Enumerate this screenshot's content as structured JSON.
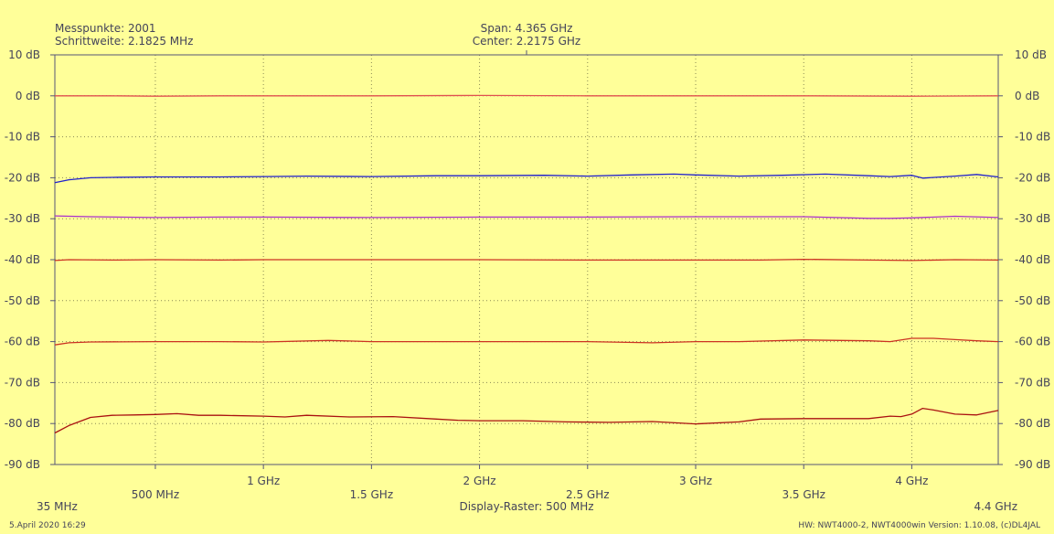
{
  "header": {
    "points_label": "Messpunkte: 2001",
    "step_label": "Schrittweite: 2.1825 MHz",
    "span_label": "Span: 4.365 GHz",
    "center_label": "Center: 2.2175 GHz"
  },
  "footer": {
    "start_label": "35 MHz",
    "stop_label": "4.4 GHz",
    "raster_label": "Display-Raster: 500 MHz",
    "date_label": "5.April 2020 16:29",
    "hw_label": "HW: NWT4000-2, NWT4000win Version: 1.10.08, (c)DL4JAL"
  },
  "colors": {
    "background": "#ffff99",
    "grid": "#8a8a55",
    "frame": "#555577",
    "text": "#44445a"
  },
  "chart_data": {
    "type": "line",
    "xunit": "MHz",
    "yunit": "dB",
    "xlim": [
      35,
      4400
    ],
    "ylim": [
      -90,
      10
    ],
    "x_ticks": [
      500,
      1000,
      1500,
      2000,
      2500,
      3000,
      3500,
      4000
    ],
    "x_tick_labels": [
      "500 MHz",
      "1 GHz",
      "1.5 GHz",
      "2 GHz",
      "2.5 GHz",
      "3 GHz",
      "3.5 GHz",
      "4 GHz"
    ],
    "y_ticks": [
      10,
      0,
      -10,
      -20,
      -30,
      -40,
      -50,
      -60,
      -70,
      -80,
      -90
    ],
    "y_tick_labels": [
      "10 dB",
      "0 dB",
      "-10 dB",
      "-20 dB",
      "-30 dB",
      "-40 dB",
      "-50 dB",
      "-60 dB",
      "-70 dB",
      "-80 dB",
      "-90 dB"
    ],
    "grid": true,
    "series": [
      {
        "color": "#e05050",
        "x": [
          35,
          300,
          500,
          800,
          1000,
          1500,
          2000,
          2500,
          3000,
          3500,
          4000,
          4400
        ],
        "y": [
          0.0,
          0.0,
          -0.1,
          0.0,
          0.0,
          0.0,
          0.1,
          0.0,
          0.0,
          0.0,
          -0.1,
          0.0
        ]
      },
      {
        "color": "#2020cc",
        "x": [
          35,
          100,
          200,
          300,
          500,
          800,
          1000,
          1200,
          1500,
          1800,
          2000,
          2300,
          2500,
          2700,
          2900,
          3000,
          3200,
          3400,
          3600,
          3800,
          3900,
          4000,
          4050,
          4200,
          4300,
          4400
        ],
        "y": [
          -21.2,
          -20.5,
          -20.0,
          -19.9,
          -19.8,
          -19.8,
          -19.7,
          -19.6,
          -19.7,
          -19.5,
          -19.5,
          -19.4,
          -19.6,
          -19.3,
          -19.1,
          -19.3,
          -19.6,
          -19.4,
          -19.1,
          -19.5,
          -19.7,
          -19.4,
          -20.1,
          -19.6,
          -19.2,
          -19.8
        ]
      },
      {
        "color": "#aa30cc",
        "x": [
          35,
          200,
          500,
          800,
          1000,
          1500,
          2000,
          2500,
          3000,
          3500,
          3800,
          3900,
          4000,
          4200,
          4400
        ],
        "y": [
          -29.3,
          -29.5,
          -29.7,
          -29.6,
          -29.6,
          -29.7,
          -29.6,
          -29.6,
          -29.5,
          -29.5,
          -29.9,
          -29.9,
          -29.8,
          -29.4,
          -29.7
        ]
      },
      {
        "color": "#cc3322",
        "x": [
          35,
          100,
          300,
          500,
          800,
          1000,
          1500,
          2000,
          2500,
          3000,
          3300,
          3500,
          3800,
          4000,
          4200,
          4400
        ],
        "y": [
          -40.2,
          -40.0,
          -40.1,
          -40.0,
          -40.1,
          -40.0,
          -40.0,
          -40.0,
          -40.1,
          -40.1,
          -40.1,
          -39.9,
          -40.1,
          -40.2,
          -40.0,
          -40.1
        ]
      },
      {
        "color": "#cc3322",
        "x": [
          35,
          100,
          200,
          500,
          800,
          1000,
          1300,
          1500,
          2000,
          2500,
          2800,
          3000,
          3200,
          3500,
          3800,
          3900,
          4000,
          4100,
          4200,
          4300,
          4400
        ],
        "y": [
          -60.8,
          -60.3,
          -60.1,
          -60.0,
          -60.0,
          -60.1,
          -59.7,
          -60.0,
          -60.0,
          -60.0,
          -60.3,
          -60.0,
          -60.0,
          -59.6,
          -59.8,
          -60.0,
          -59.2,
          -59.2,
          -59.5,
          -59.8,
          -60.0
        ]
      },
      {
        "color": "#aa1111",
        "x": [
          35,
          100,
          200,
          300,
          400,
          500,
          600,
          700,
          800,
          1000,
          1100,
          1200,
          1400,
          1600,
          1800,
          1900,
          2000,
          2200,
          2400,
          2600,
          2800,
          3000,
          3200,
          3300,
          3500,
          3700,
          3800,
          3900,
          3950,
          4000,
          4050,
          4100,
          4200,
          4300,
          4400
        ],
        "y": [
          -82.3,
          -80.5,
          -78.5,
          -78.0,
          -77.9,
          -77.8,
          -77.6,
          -78.0,
          -78.0,
          -78.2,
          -78.4,
          -78.0,
          -78.4,
          -78.3,
          -78.9,
          -79.2,
          -79.3,
          -79.3,
          -79.6,
          -79.7,
          -79.5,
          -80.1,
          -79.6,
          -78.9,
          -78.8,
          -78.8,
          -78.8,
          -78.2,
          -78.3,
          -77.7,
          -76.3,
          -76.7,
          -77.7,
          -77.9,
          -76.8
        ]
      }
    ]
  }
}
